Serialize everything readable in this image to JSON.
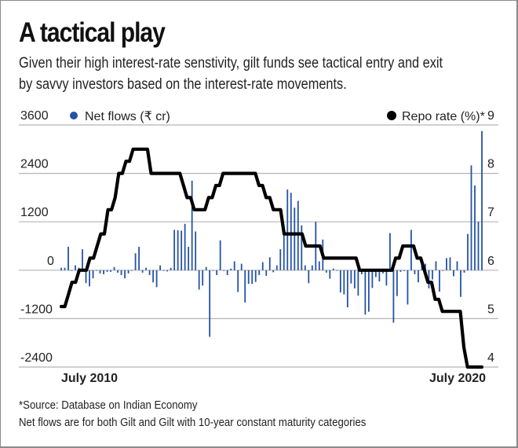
{
  "title": "A tactical play",
  "subtitle_lines": [
    "Given their high interest-rate senstivity, gilt funds see tactical entry and exit",
    "by savvy investors based on the interest-rate movements."
  ],
  "footnotes": [
    "*Source: Database on Indian Economy",
    "Net flows are for both Gilt and Gilt with 10-year constant maturity categories"
  ],
  "colors": {
    "bars": "#2553a6",
    "line": "#000000",
    "grid": "#b5b5b5",
    "text": "#222222"
  },
  "chart_data": {
    "type": "bar+line",
    "title": "A tactical play",
    "xlabel": "",
    "ylabel_left": "Net flows (₹ cr)",
    "ylabel_right": "Repo rate (%)*",
    "x_tick_labels": [
      "July 2010",
      "July 2020"
    ],
    "ylim_left": [
      -2400,
      3600
    ],
    "yticks_left": [
      3600,
      2400,
      1200,
      0,
      -1200,
      -2400
    ],
    "ylim_right": [
      4,
      9
    ],
    "yticks_right": [
      9,
      8,
      7,
      6,
      5,
      4
    ],
    "grid": true,
    "legend": [
      {
        "name": "Net flows (₹ cr)",
        "marker": "dot",
        "color": "#2553a6",
        "placement": "top-left"
      },
      {
        "name": "Repo rate (%)*",
        "marker": "dot",
        "color": "#000000",
        "placement": "top-right"
      }
    ],
    "series": [
      {
        "name": "Net flows (₹ cr)",
        "type": "bar",
        "axis": "left",
        "values": [
          60,
          60,
          580,
          0,
          120,
          60,
          520,
          -320,
          -400,
          -200,
          0,
          -80,
          -100,
          -40,
          -40,
          80,
          -60,
          -120,
          -200,
          -80,
          0,
          420,
          580,
          -60,
          60,
          -120,
          -300,
          -420,
          120,
          0,
          -30,
          60,
          1000,
          990,
          980,
          1150,
          580,
          2220,
          960,
          -480,
          -380,
          80,
          -1650,
          0,
          -120,
          740,
          0,
          -120,
          40,
          220,
          -540,
          160,
          -800,
          -340,
          -340,
          -290,
          -120,
          200,
          -140,
          320,
          -50,
          120,
          520,
          1050,
          2000,
          1920,
          1550,
          1720,
          1110,
          120,
          -320,
          120,
          1200,
          220,
          760,
          -60,
          -210,
          40,
          -10,
          -550,
          -600,
          -920,
          -330,
          -450,
          -630,
          -100,
          -1100,
          -1030,
          -440,
          -170,
          -280,
          -80,
          -380,
          920,
          -1300,
          -640,
          -40,
          -20,
          -850,
          1000,
          -100,
          -300,
          120,
          160,
          -450,
          -230,
          220,
          -530,
          0,
          300,
          320,
          -150,
          220,
          -660,
          -60,
          900,
          2600,
          2100,
          1200,
          3450
        ],
        "note": "Monthly values estimated from bar lengths; approximately Apr 2010 to Dec 2020"
      },
      {
        "name": "Repo rate (%)*",
        "type": "line",
        "axis": "right",
        "values": [
          5.25,
          5.25,
          5.5,
          5.75,
          5.75,
          6.0,
          6.0,
          6.0,
          6.25,
          6.25,
          6.5,
          6.75,
          6.75,
          7.25,
          7.25,
          7.5,
          8.0,
          8.0,
          8.25,
          8.25,
          8.5,
          8.5,
          8.5,
          8.5,
          8.5,
          8.0,
          8.0,
          8.0,
          8.0,
          8.0,
          8.0,
          8.0,
          8.0,
          8.0,
          7.75,
          7.5,
          7.5,
          7.25,
          7.25,
          7.25,
          7.25,
          7.5,
          7.5,
          7.75,
          7.75,
          8.0,
          8.0,
          8.0,
          8.0,
          8.0,
          8.0,
          8.0,
          8.0,
          8.0,
          8.0,
          7.75,
          7.75,
          7.5,
          7.5,
          7.25,
          7.25,
          7.25,
          6.75,
          6.75,
          6.75,
          6.75,
          6.75,
          6.75,
          6.5,
          6.5,
          6.5,
          6.5,
          6.5,
          6.25,
          6.25,
          6.25,
          6.25,
          6.25,
          6.25,
          6.25,
          6.25,
          6.25,
          6.25,
          6.0,
          6.0,
          6.0,
          6.0,
          6.0,
          6.0,
          6.0,
          6.0,
          6.0,
          6.0,
          6.25,
          6.25,
          6.5,
          6.5,
          6.5,
          6.5,
          6.25,
          6.25,
          6.0,
          5.75,
          5.75,
          5.4,
          5.4,
          5.15,
          5.15,
          5.15,
          5.15,
          5.15,
          5.15,
          4.4,
          4.0,
          4.0,
          4.0,
          4.0,
          4.0
        ],
        "note": "Step values estimated from line position"
      }
    ]
  }
}
